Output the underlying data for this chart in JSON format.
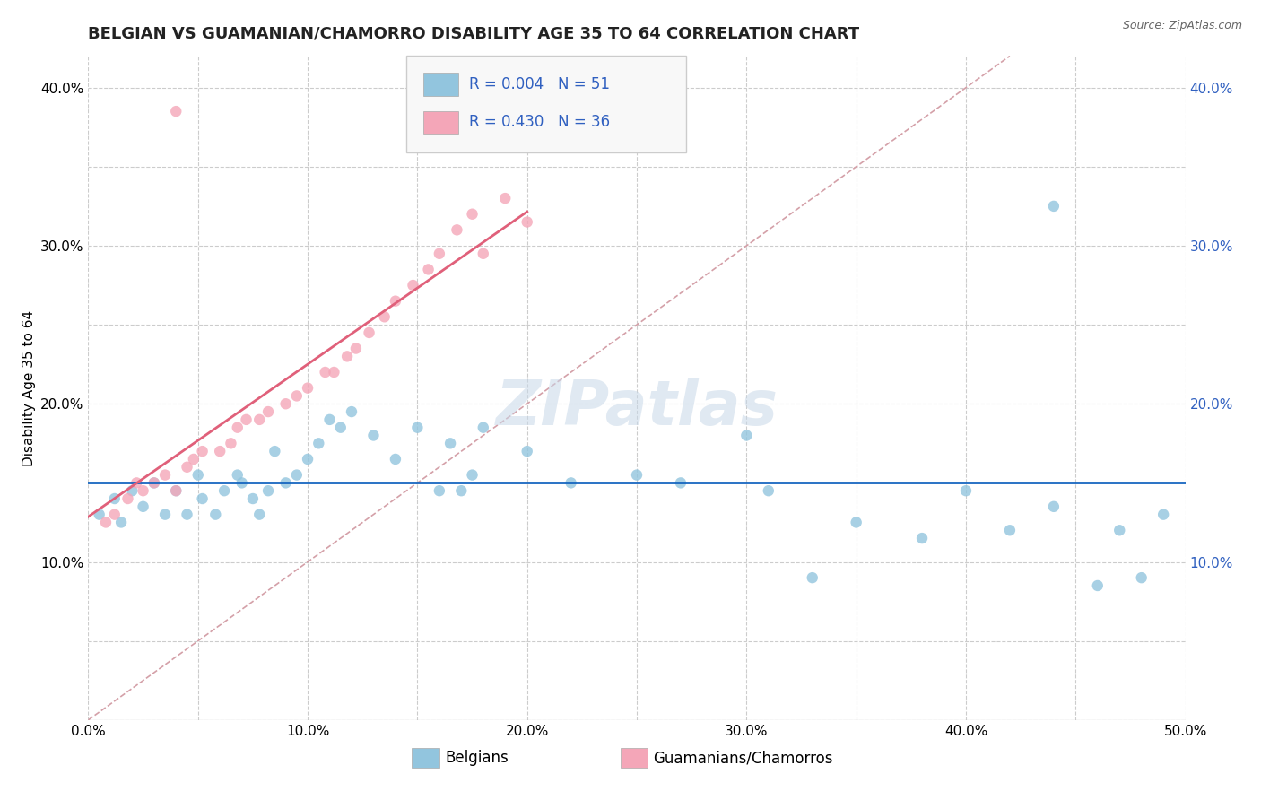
{
  "title": "BELGIAN VS GUAMANIAN/CHAMORRO DISABILITY AGE 35 TO 64 CORRELATION CHART",
  "source": "Source: ZipAtlas.com",
  "ylabel": "Disability Age 35 to 64",
  "xlim": [
    0.0,
    0.5
  ],
  "ylim": [
    0.0,
    0.42
  ],
  "xtick_positions": [
    0.0,
    0.05,
    0.1,
    0.15,
    0.2,
    0.25,
    0.3,
    0.35,
    0.4,
    0.45,
    0.5
  ],
  "xtick_labels": [
    "0.0%",
    "",
    "10.0%",
    "",
    "20.0%",
    "",
    "30.0%",
    "",
    "40.0%",
    "",
    "50.0%"
  ],
  "ytick_positions": [
    0.0,
    0.05,
    0.1,
    0.15,
    0.2,
    0.25,
    0.3,
    0.35,
    0.4
  ],
  "ytick_labels": [
    "",
    "",
    "10.0%",
    "",
    "20.0%",
    "",
    "30.0%",
    "",
    "40.0%"
  ],
  "belgian_color": "#92c5de",
  "guamanian_color": "#f4a6b8",
  "belgian_trend_color": "#1565c0",
  "guamanian_trend_color": "#e0607a",
  "belgian_R": 0.004,
  "belgian_N": 51,
  "guamanian_R": 0.43,
  "guamanian_N": 36,
  "legend_label1": "Belgians",
  "legend_label2": "Guamanians/Chamorros",
  "background_color": "#ffffff",
  "grid_color": "#cccccc",
  "title_fontsize": 13,
  "tick_fontsize": 11,
  "ylabel_fontsize": 11,
  "legend_fontsize": 12,
  "scatter_size": 80,
  "scatter_alpha": 0.8,
  "bel_x": [
    0.005,
    0.012,
    0.015,
    0.02,
    0.025,
    0.03,
    0.035,
    0.04,
    0.045,
    0.05,
    0.052,
    0.058,
    0.062,
    0.068,
    0.07,
    0.075,
    0.078,
    0.082,
    0.085,
    0.09,
    0.095,
    0.1,
    0.105,
    0.11,
    0.115,
    0.12,
    0.13,
    0.14,
    0.15,
    0.16,
    0.165,
    0.17,
    0.175,
    0.18,
    0.2,
    0.22,
    0.25,
    0.27,
    0.3,
    0.31,
    0.33,
    0.35,
    0.38,
    0.4,
    0.42,
    0.44,
    0.46,
    0.47,
    0.48,
    0.49,
    0.44
  ],
  "bel_y": [
    0.13,
    0.14,
    0.125,
    0.145,
    0.135,
    0.15,
    0.13,
    0.145,
    0.13,
    0.155,
    0.14,
    0.13,
    0.145,
    0.155,
    0.15,
    0.14,
    0.13,
    0.145,
    0.17,
    0.15,
    0.155,
    0.165,
    0.175,
    0.19,
    0.185,
    0.195,
    0.18,
    0.165,
    0.185,
    0.145,
    0.175,
    0.145,
    0.155,
    0.185,
    0.17,
    0.15,
    0.155,
    0.15,
    0.18,
    0.145,
    0.09,
    0.125,
    0.115,
    0.145,
    0.12,
    0.135,
    0.085,
    0.12,
    0.09,
    0.13,
    0.325
  ],
  "gua_x": [
    0.008,
    0.012,
    0.018,
    0.022,
    0.025,
    0.03,
    0.035,
    0.04,
    0.045,
    0.048,
    0.052,
    0.06,
    0.065,
    0.068,
    0.072,
    0.078,
    0.082,
    0.09,
    0.095,
    0.1,
    0.108,
    0.112,
    0.118,
    0.122,
    0.128,
    0.135,
    0.14,
    0.148,
    0.155,
    0.16,
    0.168,
    0.175,
    0.18,
    0.19,
    0.2,
    0.04
  ],
  "gua_y": [
    0.125,
    0.13,
    0.14,
    0.15,
    0.145,
    0.15,
    0.155,
    0.145,
    0.16,
    0.165,
    0.17,
    0.17,
    0.175,
    0.185,
    0.19,
    0.19,
    0.195,
    0.2,
    0.205,
    0.21,
    0.22,
    0.22,
    0.23,
    0.235,
    0.245,
    0.255,
    0.265,
    0.275,
    0.285,
    0.295,
    0.31,
    0.32,
    0.295,
    0.33,
    0.315,
    0.385
  ],
  "diag_color": "#d4a0a8",
  "diag_style": "--",
  "watermark_text": "ZIPatlas",
  "watermark_color": "#c8d8e8"
}
